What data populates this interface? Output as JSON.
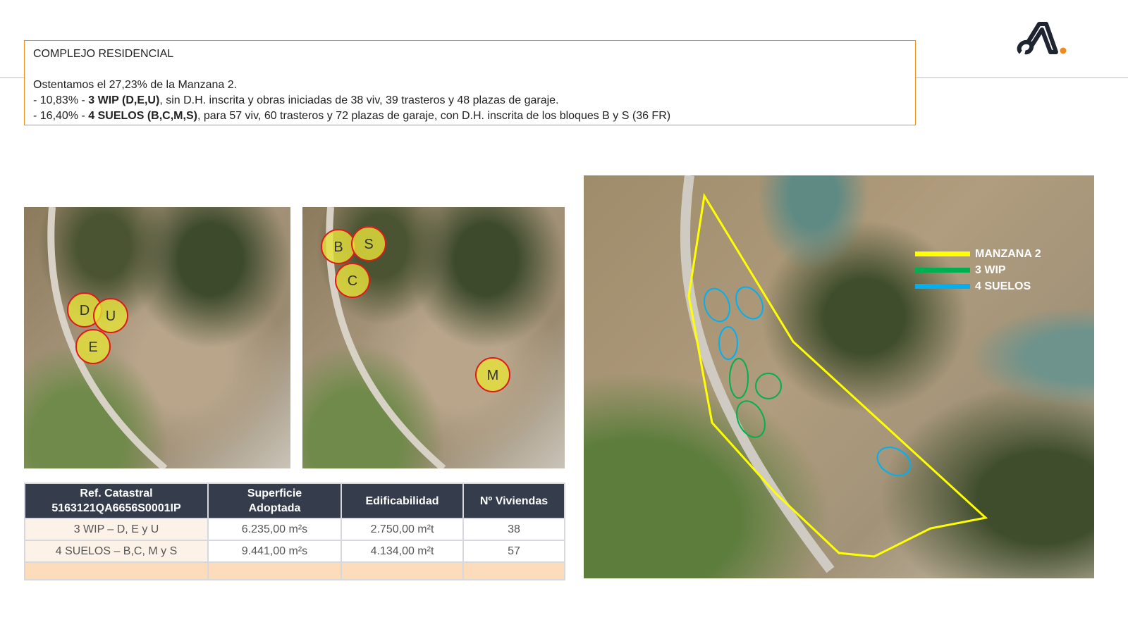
{
  "header": {
    "title": "COMPLEJO RESIDENCIAL",
    "intro": "Ostentamos el 27,23% de la Manzana 2.",
    "line1": {
      "pct": "- 10,83% - ",
      "bold": "3 WIP (D,E,U)",
      "rest": ", sin D.H. inscrita y obras iniciadas de 38 viv, 39 trasteros y 48 plazas de garaje."
    },
    "line2": {
      "pct": "- 16,40% - ",
      "bold": "4 SUELOS (B,C,M,S)",
      "rest": ", para 57 viv, 60 trasteros y 72 plazas de garaje, con D.H. inscrita de los bloques B y S (36 FR)"
    }
  },
  "logo": {
    "letter": "A",
    "accent": "#f08a1c",
    "color": "#1f2530"
  },
  "image1": {
    "markers": [
      "D",
      "U",
      "E"
    ]
  },
  "image2": {
    "markers": [
      "B",
      "S",
      "C",
      "M"
    ]
  },
  "map": {
    "legend": [
      {
        "label": "MANZANA 2",
        "color": "#ffff00"
      },
      {
        "label": "3 WIP",
        "color": "#00b050"
      },
      {
        "label": "4 SUELOS",
        "color": "#00b0f0"
      }
    ]
  },
  "table": {
    "headers": [
      "Ref. Catastral",
      "5163121QA6656S0001IP",
      "Superficie",
      "Adoptada",
      "Edificabilidad",
      "Nº Viviendas"
    ],
    "rows": [
      [
        "3 WIP – D, E y U",
        "6.235,00 m²s",
        "2.750,00 m²t",
        "38"
      ],
      [
        "4 SUELOS – B,C, M y S",
        "9.441,00 m²s",
        "4.134,00 m²t",
        "57"
      ]
    ]
  },
  "colors": {
    "box_border": "#f08a1c",
    "table_header": "#353c4c",
    "marker_fill": "#e6e23a",
    "marker_stroke": "#e01818"
  }
}
